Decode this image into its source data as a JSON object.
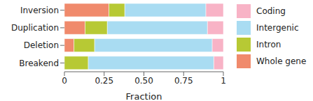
{
  "chart_data": {
    "type": "bar",
    "orientation": "horizontal",
    "stacked": true,
    "x_label": "Fraction",
    "categories": [
      "Inversion",
      "Duplication",
      "Deletion",
      "Breakend"
    ],
    "series": [
      {
        "name": "Whole gene",
        "color": "#f08a6c",
        "values": [
          0.28,
          0.13,
          0.06,
          0.0
        ]
      },
      {
        "name": "Intron",
        "color": "#b7c934",
        "values": [
          0.1,
          0.14,
          0.13,
          0.15
        ]
      },
      {
        "name": "Intergenic",
        "color": "#a9dcf2",
        "values": [
          0.51,
          0.63,
          0.74,
          0.79
        ]
      },
      {
        "name": "Coding",
        "color": "#f8b3c6",
        "values": [
          0.11,
          0.1,
          0.07,
          0.06
        ]
      }
    ],
    "xlim": [
      0,
      1
    ],
    "xticks": [
      0,
      0.25,
      {
        "value": 0.5,
        "label": "0.50"
      },
      0.75,
      1
    ],
    "grid": false,
    "legend": "right"
  }
}
